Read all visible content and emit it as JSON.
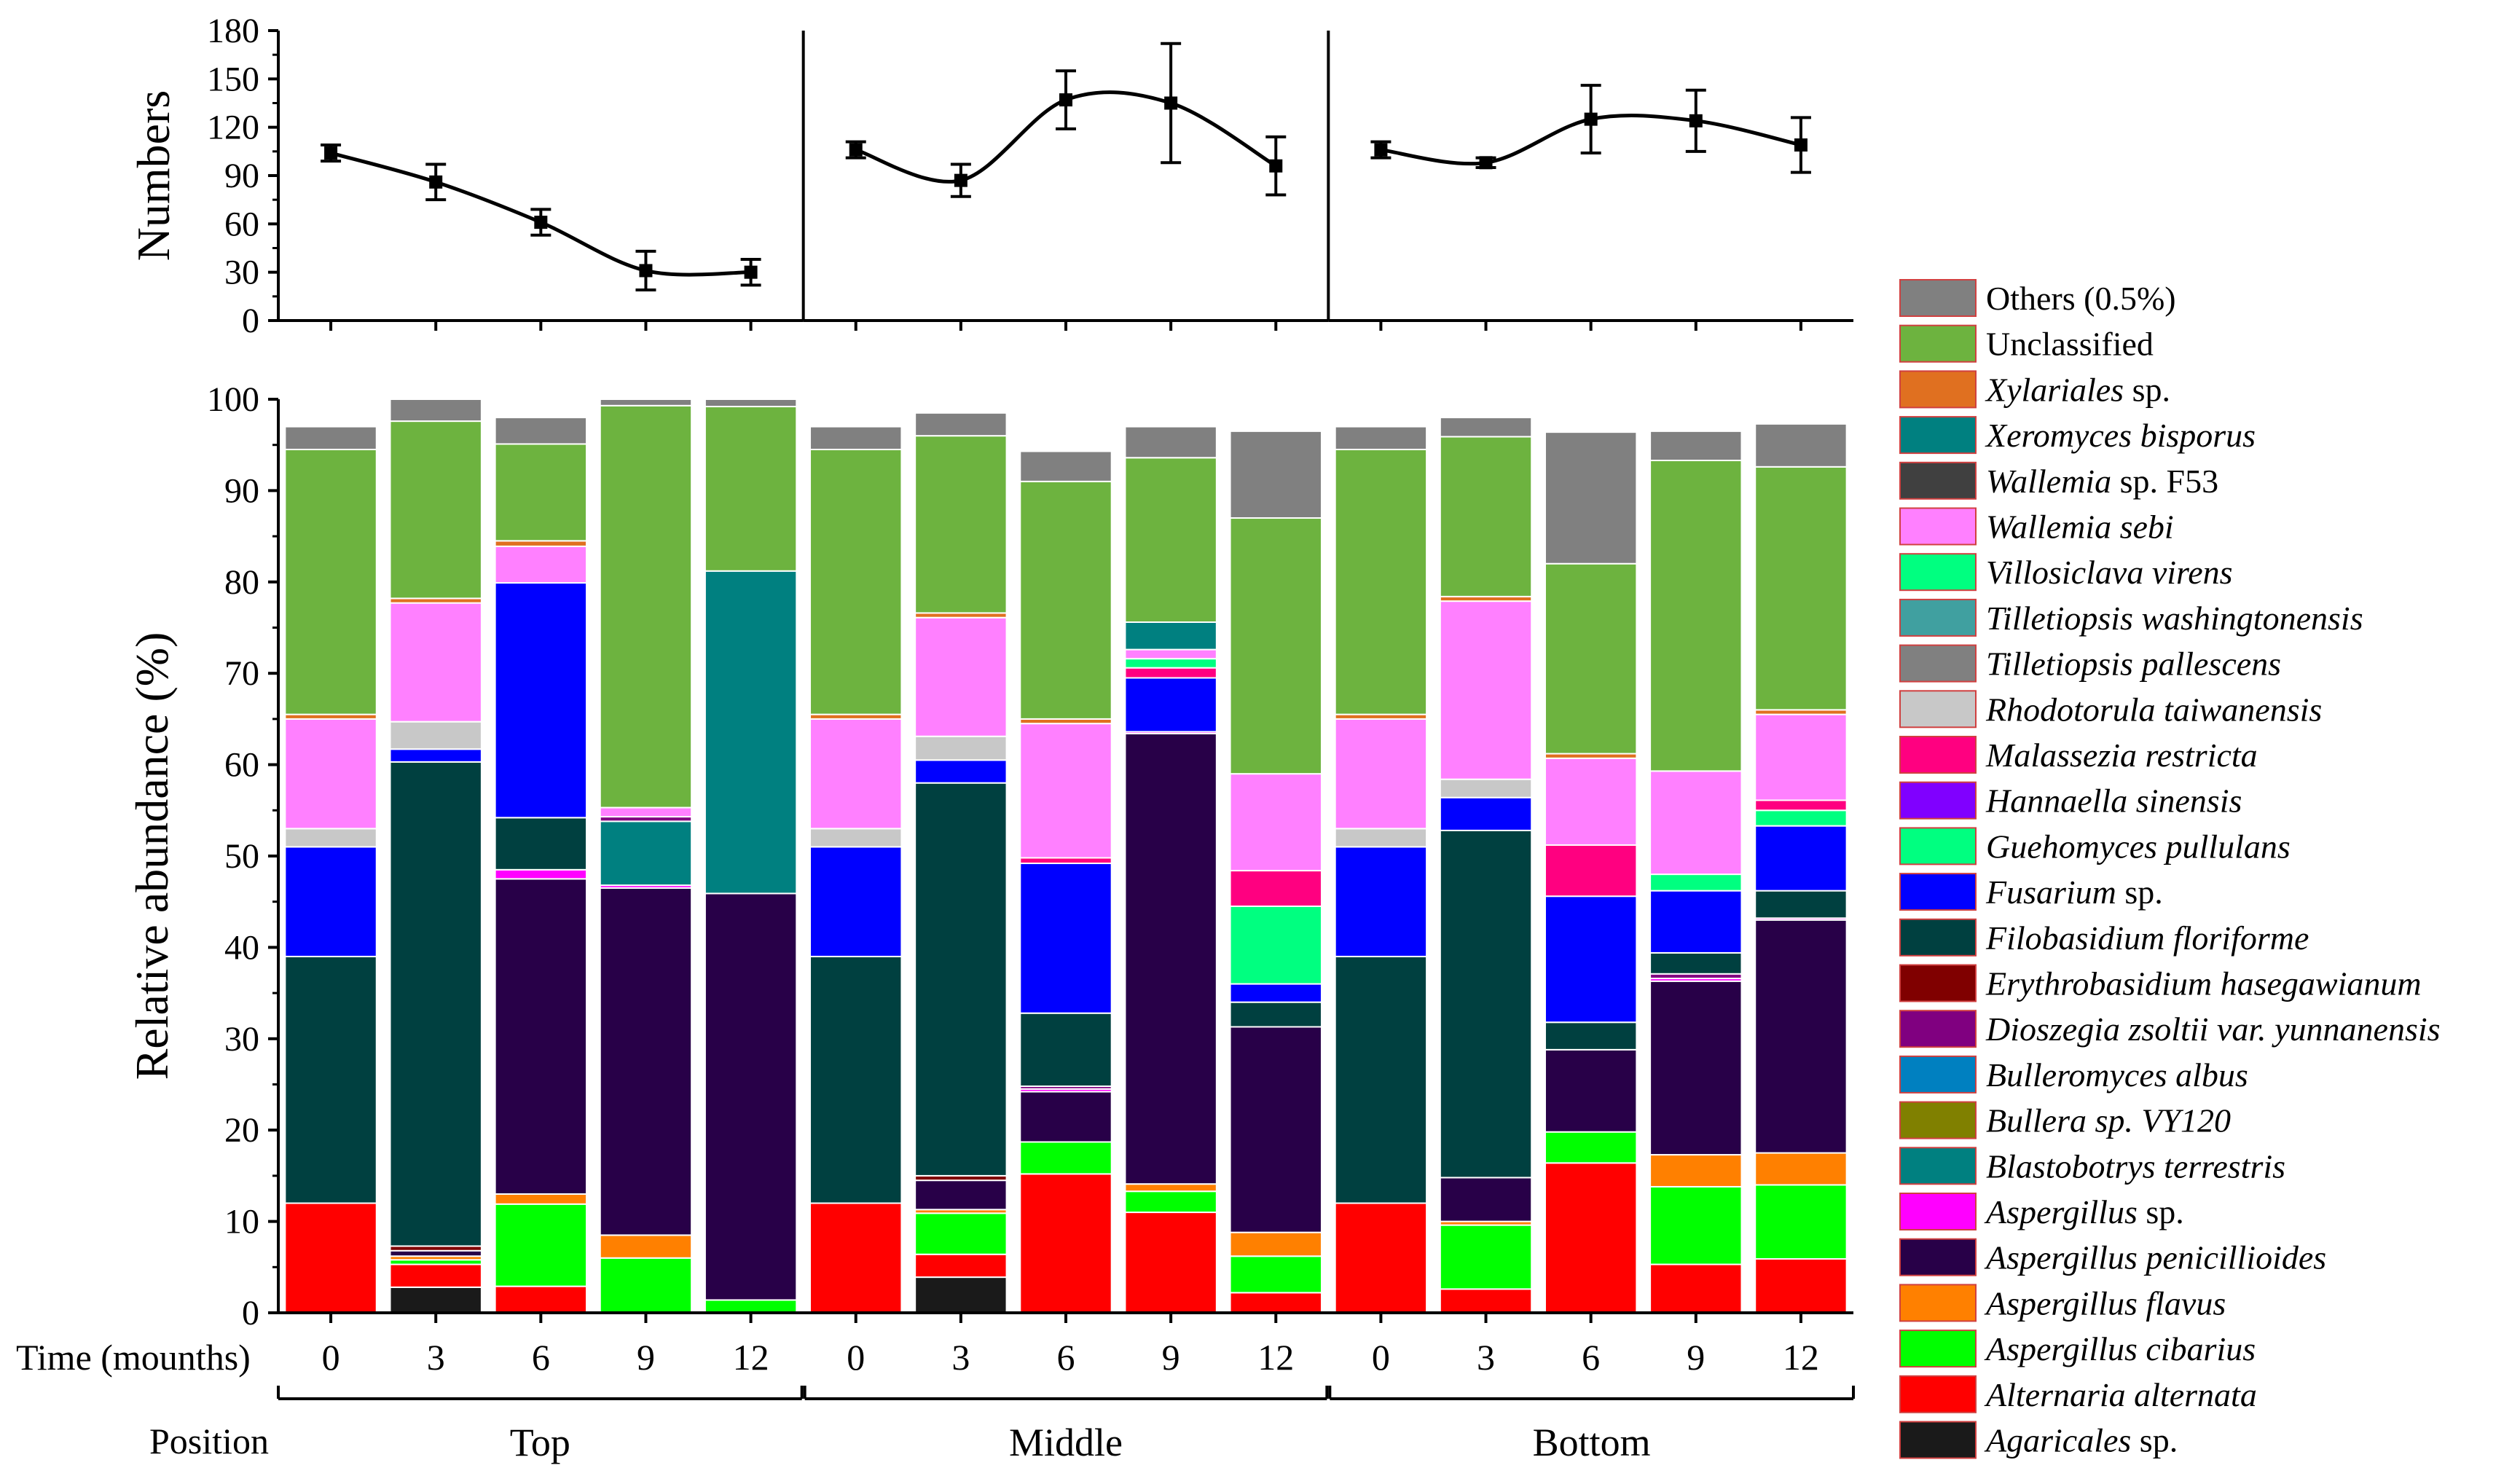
{
  "chart_data": [
    {
      "type": "line",
      "panel": "Top",
      "ylabel": "Numbers",
      "ylim": [
        0,
        180
      ],
      "yticks": [
        0,
        30,
        60,
        90,
        120,
        150,
        180
      ],
      "x": [
        "0",
        "3",
        "6",
        "9",
        "12"
      ],
      "values": [
        104,
        86,
        61,
        31,
        30
      ],
      "errors": [
        5,
        11,
        8,
        12,
        8
      ],
      "smooth": true
    },
    {
      "type": "line",
      "panel": "Middle",
      "ylim": [
        0,
        180
      ],
      "x": [
        "0",
        "3",
        "6",
        "9",
        "12"
      ],
      "values": [
        106,
        87,
        137,
        135,
        96
      ],
      "errors": [
        5,
        10,
        18,
        37,
        18
      ],
      "smooth": true
    },
    {
      "type": "line",
      "panel": "Bottom",
      "ylim": [
        0,
        180
      ],
      "x": [
        "0",
        "3",
        "6",
        "9",
        "12"
      ],
      "values": [
        106,
        98,
        125,
        124,
        109
      ],
      "errors": [
        5,
        3,
        21,
        19,
        17
      ],
      "smooth": true
    },
    {
      "type": "bar",
      "stacked": true,
      "ylabel": "Relative abundance (%)",
      "ylim": [
        0,
        100
      ],
      "yticks": [
        0,
        10,
        20,
        30,
        40,
        50,
        60,
        70,
        80,
        90,
        100
      ],
      "x_title": "Time (mounths)",
      "position_title": "Position",
      "groups": [
        "Top",
        "Middle",
        "Bottom"
      ],
      "categories": [
        "0",
        "3",
        "6",
        "9",
        "12",
        "0",
        "3",
        "6",
        "9",
        "12",
        "0",
        "3",
        "6",
        "9",
        "12"
      ],
      "legend_location": "right",
      "series": [
        {
          "name": "Agaricales",
          "suffix": " sp.",
          "color": "#1a1a1a",
          "values": [
            0,
            2.8,
            0,
            0,
            0,
            0,
            3.9,
            0,
            0,
            0,
            0,
            0,
            0,
            0,
            0
          ]
        },
        {
          "name": "Alternaria alternata",
          "suffix": "",
          "color": "#ff0000",
          "values": [
            12,
            2.5,
            2.9,
            0,
            0,
            12,
            2.5,
            15.2,
            11,
            2.2,
            12,
            2.6,
            16.4,
            5.3,
            5.9
          ]
        },
        {
          "name": "Aspergillus cibarius",
          "suffix": "",
          "color": "#00ff00",
          "values": [
            0,
            0.5,
            9,
            6,
            1.4,
            0,
            4.5,
            3.5,
            2.3,
            4,
            0,
            7,
            3.4,
            8.5,
            8.1
          ]
        },
        {
          "name": "Aspergillus flavus",
          "suffix": "",
          "color": "#ff8000",
          "values": [
            0,
            0.4,
            1.1,
            2.5,
            0,
            0,
            0.4,
            0,
            0.8,
            2.6,
            0,
            0.4,
            0,
            3.5,
            3.5
          ]
        },
        {
          "name": "Aspergillus penicillioides",
          "suffix": "",
          "color": "#280048",
          "values": [
            0,
            0.6,
            34.5,
            38,
            44.5,
            0,
            3.2,
            5.5,
            49.3,
            22.5,
            0,
            4.8,
            9,
            19,
            25.5
          ]
        },
        {
          "name": "Aspergillus",
          "suffix": " sp.",
          "color": "#ff00ff",
          "values": [
            0,
            0,
            1,
            0.3,
            0,
            0,
            0,
            0.3,
            0.2,
            0,
            0,
            0,
            0,
            0.3,
            0.2
          ]
        },
        {
          "name": "Blastobotrys terrestris",
          "suffix": "",
          "color": "#008080",
          "values": [
            0,
            0,
            0,
            7,
            35.3,
            0,
            0,
            0,
            0,
            0,
            0,
            0,
            0,
            0,
            0
          ]
        },
        {
          "name": "Bullera sp. VY120",
          "suffix": "",
          "color": "#808000",
          "values": [
            0,
            0,
            0,
            0,
            0,
            0,
            0,
            0,
            0,
            0,
            0,
            0,
            0,
            0,
            0
          ]
        },
        {
          "name": "Bulleromyces albus",
          "suffix": "",
          "color": "#0080c0",
          "values": [
            0,
            0,
            0,
            0,
            0,
            0,
            0,
            0,
            0,
            0,
            0,
            0,
            0,
            0,
            0
          ]
        },
        {
          "name": "Dioszegia zsoltii var. yunnanensis",
          "suffix": "",
          "color": "#800080",
          "values": [
            0,
            0,
            0,
            0.5,
            0,
            0,
            0,
            0.3,
            0,
            0,
            0,
            0,
            0,
            0.5,
            0
          ]
        },
        {
          "name": "Erythrobasidium hasegawianum",
          "suffix": "",
          "color": "#800000",
          "values": [
            0,
            0.5,
            0,
            0,
            0,
            0,
            0.5,
            0,
            0,
            0,
            0,
            0,
            0,
            0,
            0
          ]
        },
        {
          "name": "Filobasidium floriforme",
          "suffix": "",
          "color": "#004040",
          "values": [
            27,
            53,
            5.7,
            0,
            0,
            27,
            43,
            8,
            0,
            2.7,
            27,
            38,
            3,
            2.3,
            3
          ]
        },
        {
          "name": "Fusarium",
          "suffix": " sp.",
          "color": "#0000ff",
          "values": [
            12,
            1.4,
            25.7,
            0,
            0,
            12,
            2.5,
            16.4,
            5.9,
            2,
            12,
            3.6,
            13.8,
            6.8,
            7.1
          ]
        },
        {
          "name": "Guehomyces pullulans",
          "suffix": "",
          "color": "#00ff80",
          "values": [
            0,
            0,
            0,
            0,
            0,
            0,
            0,
            0,
            0,
            8.5,
            0,
            0,
            0,
            1.8,
            1.7
          ]
        },
        {
          "name": "Hannaella sinensis",
          "suffix": "",
          "color": "#8000ff",
          "values": [
            0,
            0,
            0,
            0,
            0,
            0,
            0,
            0,
            0,
            0,
            0,
            0,
            0,
            0,
            0
          ]
        },
        {
          "name": "Malassezia restricta",
          "suffix": "",
          "color": "#ff0080",
          "values": [
            0,
            0,
            0,
            0,
            0,
            0,
            0,
            0.6,
            1.1,
            3.9,
            0,
            0,
            5.6,
            0,
            1.1
          ]
        },
        {
          "name": "Rhodotorula taiwanensis",
          "suffix": "",
          "color": "#c8c8c8",
          "values": [
            2,
            3,
            0,
            0,
            0,
            2,
            2.6,
            0,
            0,
            0,
            2,
            2,
            0,
            0,
            0
          ]
        },
        {
          "name": "Tilletiopsis pallescens",
          "suffix": "",
          "color": "#808080",
          "values": [
            0,
            0,
            0,
            0,
            0,
            0,
            0,
            0,
            0,
            0,
            0,
            0,
            0,
            0,
            0
          ]
        },
        {
          "name": "Tilletiopsis washingtonensis",
          "suffix": "",
          "color": "#40a0a0",
          "values": [
            0,
            0,
            0,
            0,
            0,
            0,
            0,
            0,
            0,
            0,
            0,
            0,
            0,
            0,
            0
          ]
        },
        {
          "name": "Villosiclava virens",
          "suffix": "",
          "color": "#00ff80",
          "values": [
            0,
            0,
            0,
            0,
            0,
            0,
            0,
            0,
            1,
            0,
            0,
            0,
            0,
            0,
            0
          ]
        },
        {
          "name": "Wallemia sebi",
          "suffix": "",
          "color": "#ff80ff",
          "values": [
            12,
            13,
            4,
            1,
            0,
            12,
            13,
            14.7,
            1,
            10.6,
            12,
            19.5,
            9.5,
            11.3,
            9.4
          ]
        },
        {
          "name": "Wallemia",
          "suffix": " sp. F53",
          "color": "#404040",
          "values": [
            0,
            0,
            0,
            0,
            0,
            0,
            0,
            0,
            0,
            0,
            0,
            0,
            0,
            0,
            0
          ]
        },
        {
          "name": "Xeromyces bisporus",
          "suffix": "",
          "color": "#008080",
          "values": [
            0,
            0,
            0,
            0,
            0,
            0,
            0,
            0,
            3,
            0,
            0,
            0,
            0,
            0,
            0
          ]
        },
        {
          "name": "Xylariales",
          "suffix": " sp.",
          "color": "#e07020",
          "values": [
            0.5,
            0.5,
            0.6,
            0,
            0,
            0.5,
            0.5,
            0.5,
            0,
            0,
            0.5,
            0.5,
            0.5,
            0,
            0.5
          ]
        },
        {
          "name": "Unclassified",
          "suffix": "",
          "color": "#6db33f",
          "values": [
            29,
            19.4,
            10.6,
            44,
            18,
            29,
            19.4,
            26,
            18,
            28,
            29,
            17.5,
            20.8,
            34,
            26.6
          ]
        },
        {
          "name": "Others (0.5%)",
          "suffix": "",
          "color": "#808080",
          "values": [
            2.5,
            2.4,
            2.9,
            0.7,
            0.8,
            2.5,
            2.5,
            3.3,
            3.4,
            9.5,
            2.5,
            2.1,
            14.4,
            3.2,
            4.7
          ]
        }
      ]
    }
  ]
}
